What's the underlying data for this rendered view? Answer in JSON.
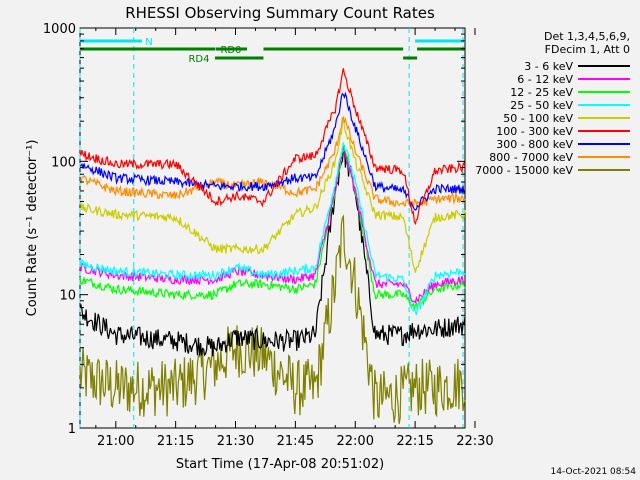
{
  "chart_data": {
    "type": "line",
    "title": "RHESSI Observing Summary Count Rates",
    "xlabel": "Start Time (17-Apr-08 20:51:02)",
    "ylabel": "Count Rate (s⁻¹ detector⁻¹)",
    "x_unit": "time of day (17-Apr-08)",
    "x_range": [
      "20:51:02",
      "22:27:30"
    ],
    "y_scale": "log",
    "ylim": [
      1,
      1000
    ],
    "x_ticks": [
      "21:00",
      "21:15",
      "21:30",
      "21:45",
      "22:00",
      "22:15",
      "22:30"
    ],
    "y_ticks": [
      "1",
      "10",
      "100",
      "1000"
    ],
    "legend_header": [
      "Det 1,3,4,5,6,9,",
      "FDecim 1, Att 0"
    ],
    "legend_position": "right",
    "timestamp": "14-Oct-2021 08:54",
    "state_bars": [
      {
        "label": "N",
        "color": "#00e5ee",
        "intervals": [
          [
            "20:51:02",
            "21:03:30"
          ],
          [
            "22:15:00",
            "22:27:30"
          ]
        ]
      },
      {
        "label": "RD0",
        "color": "#007f00",
        "intervals": [
          [
            "20:51:02",
            "21:25:00"
          ],
          [
            "21:37:00",
            "22:12:00"
          ],
          [
            "22:15:30",
            "22:27:30"
          ]
        ]
      },
      {
        "label": "RD4",
        "color": "#007f00",
        "intervals": [
          [
            "21:25:00",
            "21:37:00"
          ],
          [
            "22:12:00",
            "22:15:30"
          ]
        ]
      }
    ],
    "dashed_markers": [
      "20:51:02",
      "21:04:30",
      "22:13:30",
      "22:27:00"
    ],
    "x": [
      "20:51",
      "21:00",
      "21:15",
      "21:25",
      "21:30",
      "21:37",
      "21:45",
      "21:50",
      "21:55",
      "21:57",
      "22:00",
      "22:05",
      "22:12",
      "22:15",
      "22:20",
      "22:27"
    ],
    "series": [
      {
        "name": "3 - 6 keV",
        "color": "#000000",
        "values": [
          7.5,
          5,
          4.5,
          4,
          4.8,
          4.5,
          4.5,
          5,
          60,
          120,
          60,
          5,
          5,
          5.5,
          5.5,
          6
        ]
      },
      {
        "name": "6 - 12 keV",
        "color": "#ff00ff",
        "values": [
          16,
          14,
          13,
          13,
          15,
          14,
          13,
          14,
          60,
          130,
          60,
          12,
          12,
          9,
          12,
          13
        ]
      },
      {
        "name": "12 - 25 keV",
        "color": "#00ff00",
        "values": [
          13,
          11,
          10,
          10,
          12,
          12,
          11,
          12,
          60,
          130,
          60,
          10,
          10,
          8,
          11,
          12
        ]
      },
      {
        "name": "25 - 50 keV",
        "color": "#00ffff",
        "values": [
          17,
          15,
          14,
          14,
          16,
          14,
          15,
          16,
          70,
          140,
          70,
          14,
          13,
          7,
          14,
          15
        ]
      },
      {
        "name": "50 - 100 keV",
        "color": "#cccc00",
        "values": [
          45,
          40,
          38,
          22,
          22,
          22,
          40,
          45,
          100,
          200,
          100,
          40,
          38,
          15,
          38,
          40
        ]
      },
      {
        "name": "100 - 300 keV",
        "color": "#ff0000",
        "values": [
          115,
          95,
          95,
          50,
          55,
          50,
          105,
          110,
          250,
          480,
          250,
          90,
          85,
          35,
          85,
          90
        ]
      },
      {
        "name": "300 - 800 keV",
        "color": "#0000ff",
        "values": [
          95,
          75,
          70,
          65,
          65,
          65,
          75,
          75,
          180,
          340,
          180,
          65,
          60,
          45,
          62,
          62
        ]
      },
      {
        "name": "800 - 7000 keV",
        "color": "#ff8c00",
        "values": [
          75,
          60,
          55,
          70,
          65,
          70,
          58,
          62,
          120,
          220,
          120,
          52,
          48,
          48,
          52,
          53
        ]
      },
      {
        "name": "7000 - 15000 keV",
        "color": "#808000",
        "values": [
          2.5,
          2,
          2,
          3,
          4,
          3.5,
          2,
          2,
          12,
          30,
          12,
          1.6,
          1.8,
          2,
          2,
          2.2
        ]
      }
    ]
  }
}
